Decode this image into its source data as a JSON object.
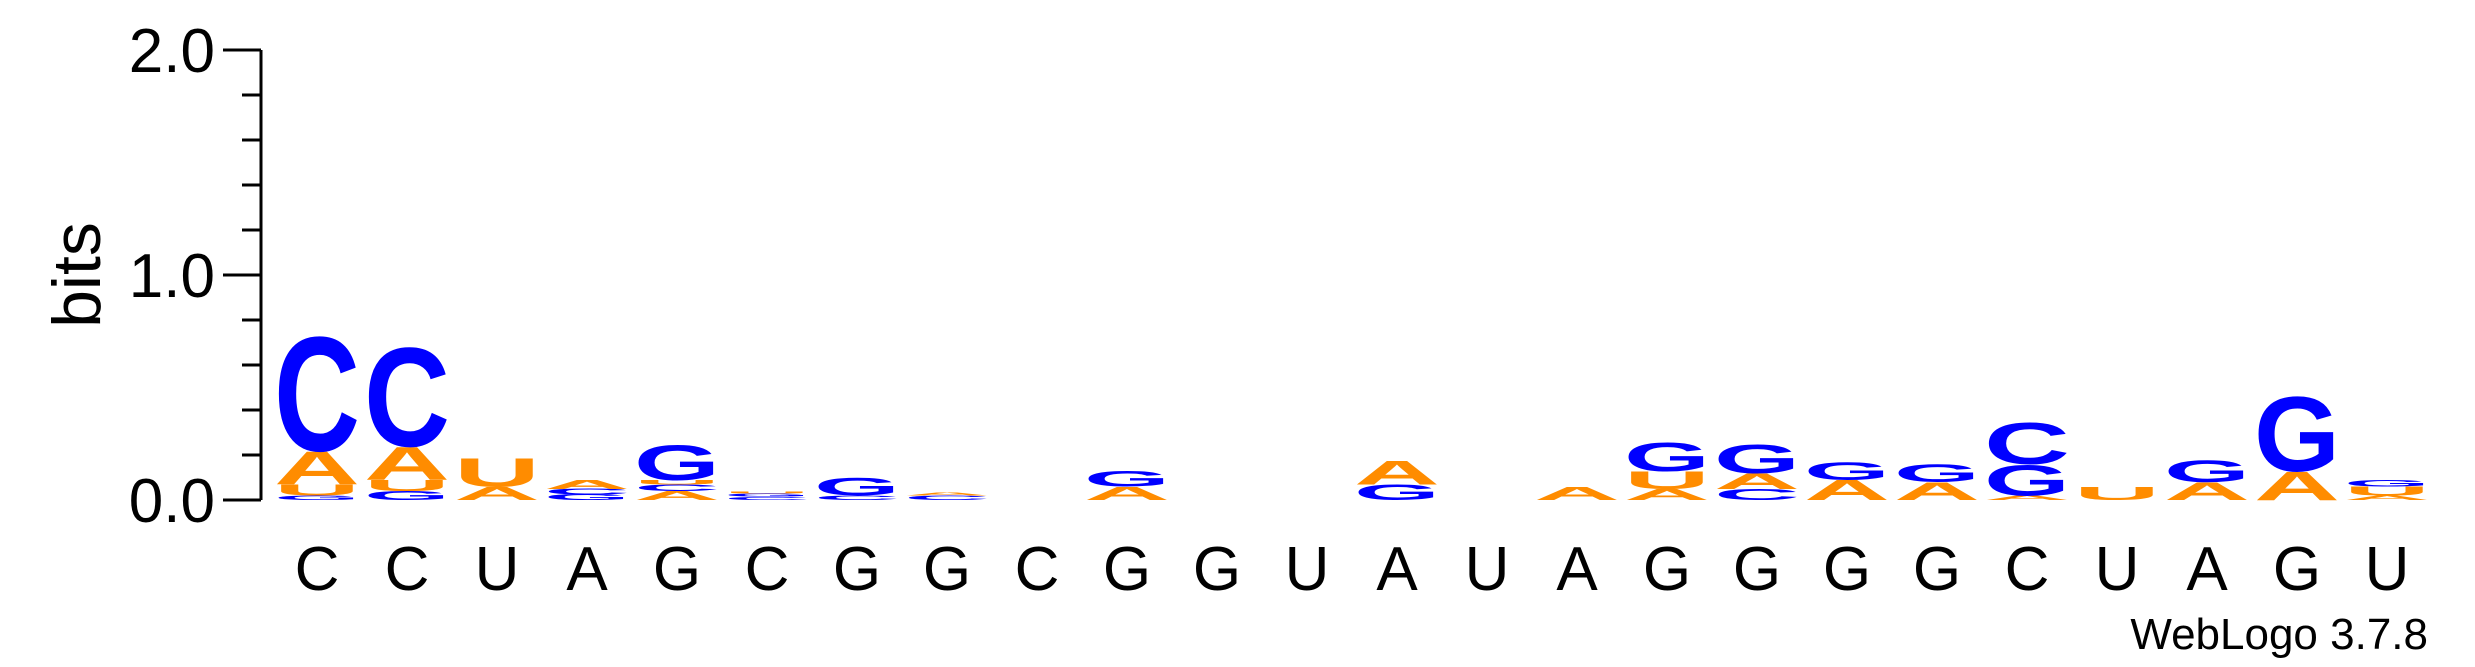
{
  "chart_data": {
    "type": "sequence-logo",
    "ylabel": "bits",
    "ylim": [
      0,
      2.0
    ],
    "yticks": [
      {
        "value": 0,
        "label": "0.0"
      },
      {
        "value": 1,
        "label": "1.0"
      },
      {
        "value": 2,
        "label": "2.0"
      }
    ],
    "colors": {
      "C": "#0000FF",
      "G": "#0000FF",
      "A": "#FF8C00",
      "U": "#FF8C00"
    },
    "positions": [
      {
        "label": "C",
        "stack": [
          [
            "G",
            0.02
          ],
          [
            "U",
            0.05
          ],
          [
            "A",
            0.15
          ],
          [
            "C",
            0.52
          ]
        ]
      },
      {
        "label": "C",
        "stack": [
          [
            "G",
            0.04
          ],
          [
            "U",
            0.05
          ],
          [
            "A",
            0.15
          ],
          [
            "C",
            0.45
          ]
        ]
      },
      {
        "label": "U",
        "stack": [
          [
            "A",
            0.06
          ],
          [
            "U",
            0.13
          ]
        ]
      },
      {
        "label": "A",
        "stack": [
          [
            "G",
            0.025
          ],
          [
            "C",
            0.025
          ],
          [
            "A",
            0.04
          ]
        ]
      },
      {
        "label": "G",
        "stack": [
          [
            "A",
            0.04
          ],
          [
            "C",
            0.03
          ],
          [
            "U",
            0.02
          ],
          [
            "G",
            0.16
          ]
        ]
      },
      {
        "label": "C",
        "stack": [
          [
            "C",
            0.015
          ],
          [
            "G",
            0.015
          ],
          [
            "U",
            0.01
          ]
        ]
      },
      {
        "label": "G",
        "stack": [
          [
            "C",
            0.02
          ],
          [
            "G",
            0.08
          ]
        ]
      },
      {
        "label": "G",
        "stack": [
          [
            "C",
            0.02
          ],
          [
            "A",
            0.015
          ]
        ]
      },
      {
        "label": "C",
        "stack": []
      },
      {
        "label": "G",
        "stack": [
          [
            "A",
            0.06
          ],
          [
            "G",
            0.07
          ]
        ]
      },
      {
        "label": "G",
        "stack": []
      },
      {
        "label": "U",
        "stack": []
      },
      {
        "label": "A",
        "stack": [
          [
            "G",
            0.07
          ],
          [
            "A",
            0.11
          ]
        ]
      },
      {
        "label": "U",
        "stack": []
      },
      {
        "label": "A",
        "stack": [
          [
            "A",
            0.06
          ]
        ]
      },
      {
        "label": "G",
        "stack": [
          [
            "A",
            0.05
          ],
          [
            "U",
            0.08
          ],
          [
            "G",
            0.13
          ]
        ]
      },
      {
        "label": "G",
        "stack": [
          [
            "C",
            0.05
          ],
          [
            "A",
            0.07
          ],
          [
            "G",
            0.13
          ]
        ]
      },
      {
        "label": "G",
        "stack": [
          [
            "A",
            0.09
          ],
          [
            "G",
            0.08
          ]
        ]
      },
      {
        "label": "G",
        "stack": [
          [
            "A",
            0.08
          ],
          [
            "G",
            0.08
          ]
        ]
      },
      {
        "label": "C",
        "stack": [
          [
            "A",
            0.02
          ],
          [
            "G",
            0.14
          ],
          [
            "C",
            0.19
          ]
        ]
      },
      {
        "label": "U",
        "stack": [
          [
            "U",
            0.06
          ]
        ]
      },
      {
        "label": "A",
        "stack": [
          [
            "A",
            0.08
          ],
          [
            "G",
            0.1
          ]
        ]
      },
      {
        "label": "G",
        "stack": [
          [
            "A",
            0.13
          ],
          [
            "G",
            0.34
          ]
        ]
      },
      {
        "label": "U",
        "stack": [
          [
            "A",
            0.02
          ],
          [
            "U",
            0.04
          ],
          [
            "G",
            0.03
          ]
        ]
      }
    ]
  },
  "footer": {
    "credit": "WebLogo 3.7.8"
  }
}
